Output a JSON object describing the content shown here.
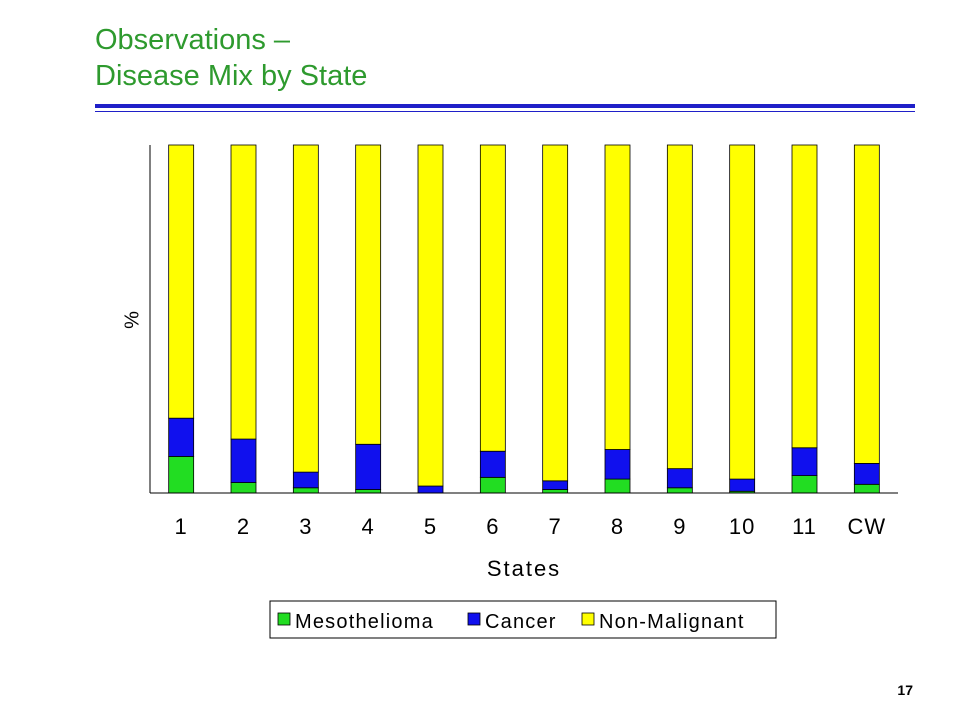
{
  "slide": {
    "title_line1": "Observations –",
    "title_line2": "Disease Mix by State",
    "page_number": "17",
    "accent_color": "#1f1fc8",
    "title_color": "#2e9a2e"
  },
  "chart_data": {
    "type": "bar",
    "stacked": true,
    "normalized": true,
    "categories": [
      "1",
      "2",
      "3",
      "4",
      "5",
      "6",
      "7",
      "8",
      "9",
      "10",
      "11",
      "CW"
    ],
    "series": [
      {
        "name": "Mesothelioma",
        "color": "#22dd22",
        "values": [
          10.5,
          3,
          1.5,
          1,
          0,
          4.5,
          1,
          4,
          1.5,
          0.5,
          5,
          2.5
        ]
      },
      {
        "name": "Cancer",
        "color": "#1010ee",
        "values": [
          11,
          12.5,
          4.5,
          13,
          2,
          7.5,
          2.5,
          8.5,
          5.5,
          3.5,
          8,
          6
        ]
      },
      {
        "name": "Non-Malignant",
        "color": "#ffff00",
        "values": [
          78.5,
          84.5,
          94,
          86,
          98,
          88,
          96.5,
          87.5,
          93,
          96,
          87,
          91.5
        ]
      }
    ],
    "title": "",
    "xlabel": "States",
    "ylabel": "%",
    "ylim": [
      0,
      100
    ],
    "grid": false,
    "legend": "bottom"
  }
}
